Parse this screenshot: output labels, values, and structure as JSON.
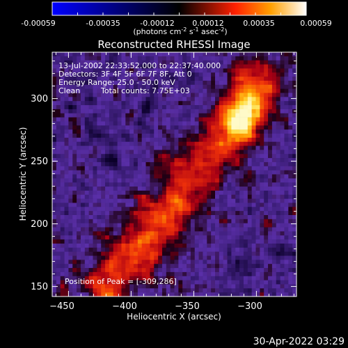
{
  "colorbar": {
    "tick_labels": [
      "-0.00059",
      "-0.00035",
      "-0.00012",
      "0.00012",
      "0.00035",
      "0.00059"
    ],
    "units_main": "(photons cm",
    "units_exp1": "-2",
    "units_mid": " s",
    "units_exp2": "-1",
    "units_mid2": " asec",
    "units_exp3": "-2",
    "units_end": ")",
    "range": [
      -0.00059,
      0.00059
    ]
  },
  "info": {
    "line1": "13-Jul-2002 22:33:52.000 to 22:37:40.000",
    "line2": "Detectors: 3F 4F 5F 6F 7F 8F, Att 0",
    "line3": "Energy Range: 25.0 - 50.0 keV",
    "line4_a": "Clean",
    "line4_b": "Total counts: 7.75E+03",
    "peak": "Position of Peak = [-309,286]"
  },
  "footer": {
    "timestamp": "30-Apr-2022 03:29"
  },
  "chart_data": {
    "type": "heatmap",
    "title": "Reconstructed RHESSI Image",
    "xlabel": "Heliocentric X (arcsec)",
    "ylabel": "Heliocentric Y (arcsec)",
    "xlim": [
      -463,
      -268
    ],
    "ylim": [
      142,
      337
    ],
    "x_ticks": [
      -450,
      -400,
      -350,
      -300
    ],
    "y_ticks": [
      150,
      200,
      250,
      300
    ],
    "x_tick_labels": [
      "−450",
      "−400",
      "−350",
      "−300"
    ],
    "y_tick_labels": [
      "150",
      "200",
      "250",
      "300"
    ],
    "peak": [
      -309,
      286
    ],
    "ridge": [
      [
        -420,
        150
      ],
      [
        -380,
        195
      ],
      [
        -350,
        240
      ],
      [
        -320,
        275
      ],
      [
        -300,
        310
      ]
    ],
    "colors": {
      "background": "#000000",
      "low": "#5a2fa8",
      "high": "#fff6a0"
    }
  }
}
